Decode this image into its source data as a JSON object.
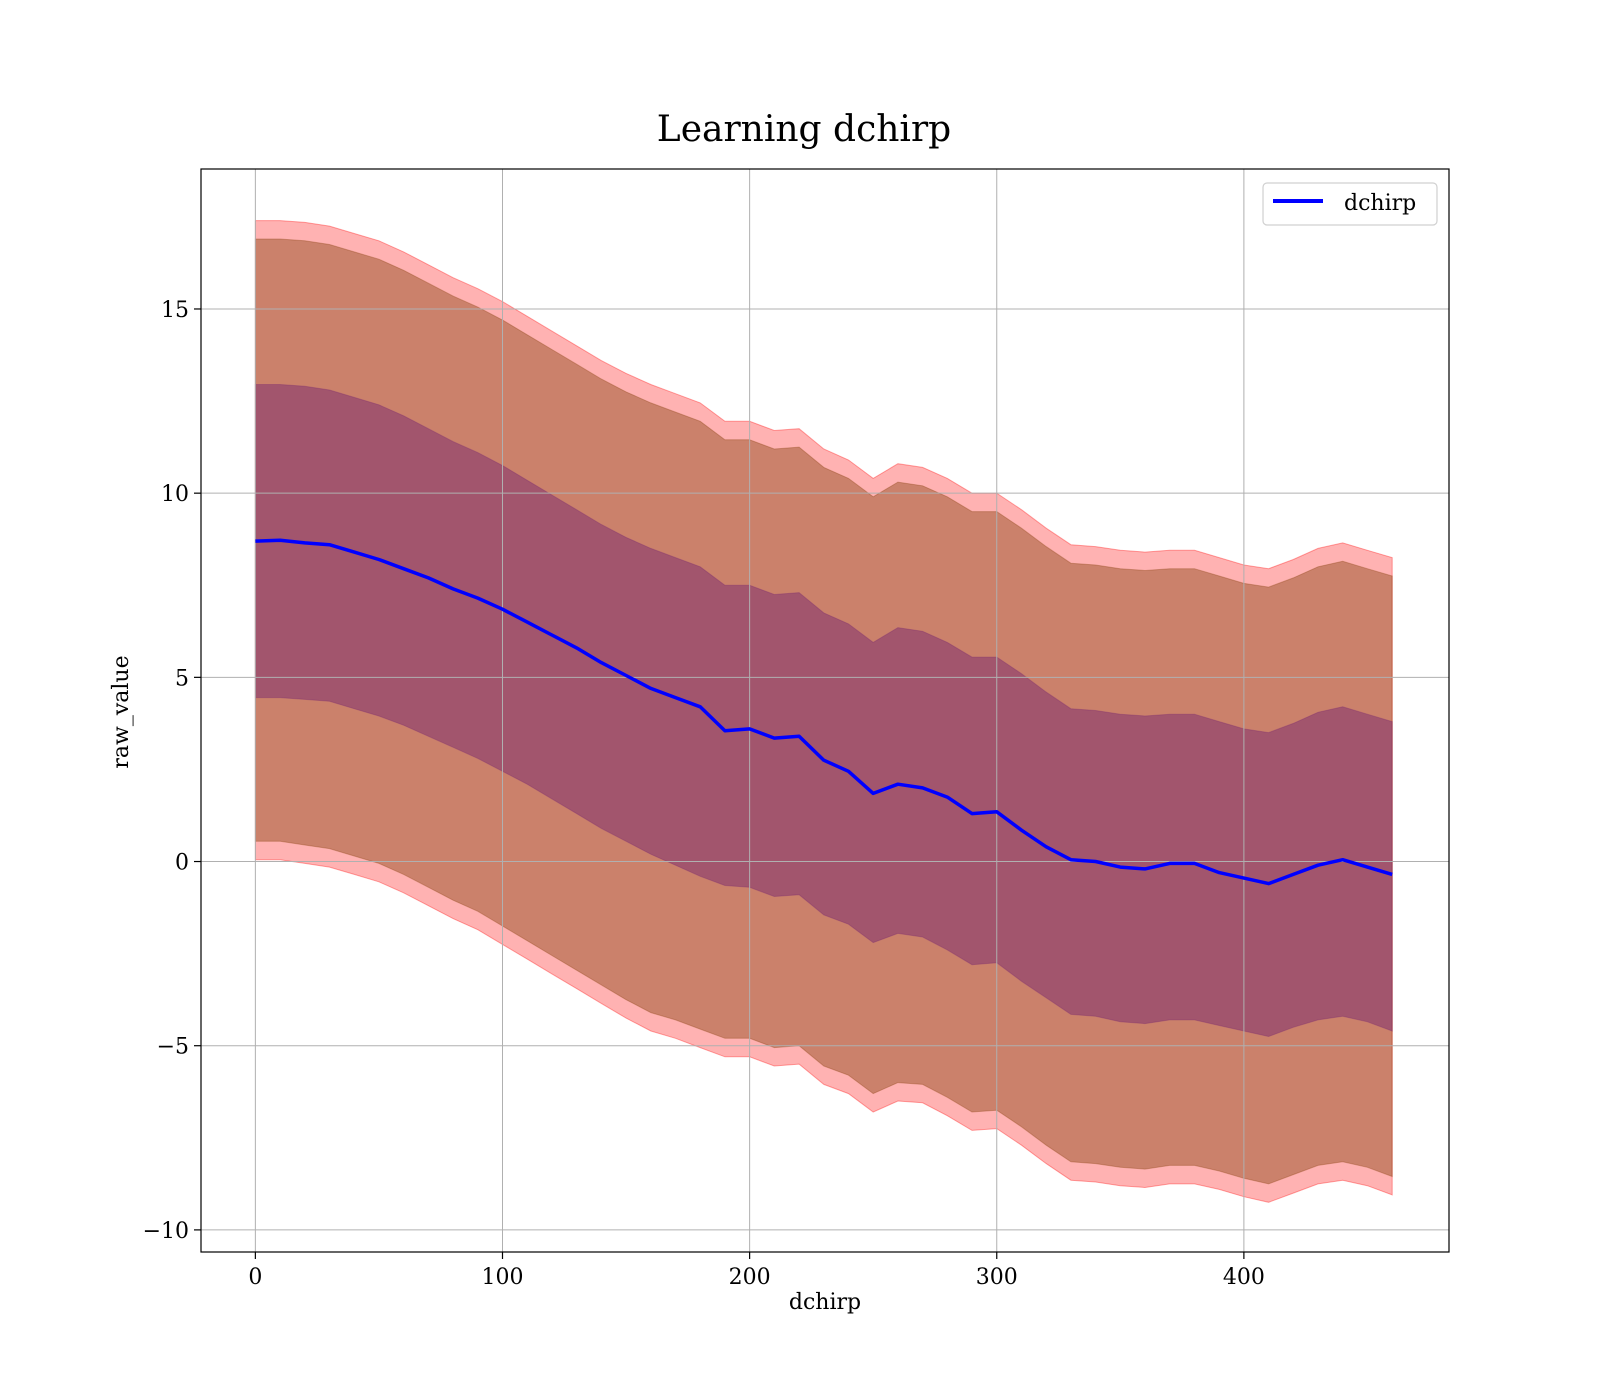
{
  "chart_data": {
    "type": "line",
    "title": "Learning dchirp",
    "xlabel": "dchirp",
    "ylabel": "raw_value",
    "xlim": [
      -22,
      483
    ],
    "ylim": [
      -10.6,
      18.8
    ],
    "xticks": [
      0,
      100,
      200,
      300,
      400
    ],
    "yticks": [
      -10,
      -5,
      0,
      5,
      10,
      15
    ],
    "xtick_labels": [
      "0",
      "100",
      "200",
      "300",
      "400"
    ],
    "ytick_labels": [
      "−10",
      "−5",
      "0",
      "5",
      "10",
      "15"
    ],
    "grid": true,
    "legend": {
      "placement": "top-right",
      "entries": [
        "dchirp"
      ]
    },
    "colors": {
      "line": "#0000ff",
      "outer_band": "#ff0000",
      "outer_band_alpha": 0.3,
      "inner_band": "#8b4513",
      "inner_band_alpha": 0.45,
      "core_band": "#7a2a70",
      "core_band_alpha": 0.5,
      "grid": "#b0b0b0"
    },
    "series": [
      {
        "name": "dchirp",
        "x": [
          0,
          10,
          20,
          30,
          40,
          50,
          60,
          70,
          80,
          90,
          100,
          110,
          120,
          130,
          140,
          150,
          160,
          170,
          180,
          190,
          200,
          210,
          220,
          230,
          240,
          250,
          260,
          270,
          280,
          290,
          300,
          310,
          320,
          330,
          340,
          350,
          360,
          370,
          380,
          390,
          400,
          410,
          420,
          430,
          440,
          450,
          460
        ],
        "y": [
          8.7,
          8.72,
          8.65,
          8.6,
          8.4,
          8.2,
          7.95,
          7.7,
          7.4,
          7.15,
          6.85,
          6.5,
          6.15,
          5.8,
          5.4,
          5.05,
          4.7,
          4.45,
          4.2,
          3.55,
          3.6,
          3.35,
          3.4,
          2.75,
          2.45,
          1.85,
          2.1,
          2.0,
          1.75,
          1.3,
          1.35,
          0.85,
          0.4,
          0.05,
          0.0,
          -0.15,
          -0.2,
          -0.05,
          -0.05,
          -0.3,
          -0.45,
          -0.6,
          -0.35,
          -0.1,
          0.05,
          -0.15,
          -0.35
        ]
      },
      {
        "name": "",
        "kind": "band",
        "level": "outer",
        "x": [
          0,
          10,
          20,
          30,
          40,
          50,
          60,
          70,
          80,
          90,
          100,
          110,
          120,
          130,
          140,
          150,
          160,
          170,
          180,
          190,
          200,
          210,
          220,
          230,
          240,
          250,
          260,
          270,
          280,
          290,
          300,
          310,
          320,
          330,
          340,
          350,
          360,
          370,
          380,
          390,
          400,
          410,
          420,
          430,
          440,
          450,
          460
        ],
        "upper": [
          17.4,
          17.4,
          17.35,
          17.25,
          17.05,
          16.85,
          16.55,
          16.2,
          15.85,
          15.55,
          15.2,
          14.8,
          14.4,
          14.0,
          13.6,
          13.25,
          12.95,
          12.7,
          12.45,
          11.95,
          11.95,
          11.7,
          11.75,
          11.2,
          10.9,
          10.4,
          10.8,
          10.7,
          10.4,
          10.0,
          10.0,
          9.55,
          9.05,
          8.6,
          8.55,
          8.45,
          8.4,
          8.45,
          8.45,
          8.25,
          8.05,
          7.95,
          8.2,
          8.5,
          8.65,
          8.45,
          8.25
        ],
        "lower": [
          0.05,
          0.05,
          -0.05,
          -0.15,
          -0.35,
          -0.55,
          -0.85,
          -1.2,
          -1.55,
          -1.85,
          -2.25,
          -2.65,
          -3.05,
          -3.45,
          -3.85,
          -4.25,
          -4.6,
          -4.8,
          -5.05,
          -5.3,
          -5.3,
          -5.55,
          -5.5,
          -6.05,
          -6.3,
          -6.8,
          -6.5,
          -6.55,
          -6.9,
          -7.3,
          -7.25,
          -7.7,
          -8.2,
          -8.65,
          -8.7,
          -8.8,
          -8.85,
          -8.75,
          -8.75,
          -8.9,
          -9.1,
          -9.25,
          -9.0,
          -8.75,
          -8.65,
          -8.8,
          -9.05
        ]
      },
      {
        "name": "",
        "kind": "band",
        "level": "inner",
        "x": [
          0,
          10,
          20,
          30,
          40,
          50,
          60,
          70,
          80,
          90,
          100,
          110,
          120,
          130,
          140,
          150,
          160,
          170,
          180,
          190,
          200,
          210,
          220,
          230,
          240,
          250,
          260,
          270,
          280,
          290,
          300,
          310,
          320,
          330,
          340,
          350,
          360,
          370,
          380,
          390,
          400,
          410,
          420,
          430,
          440,
          450,
          460
        ],
        "upper": [
          16.9,
          16.9,
          16.85,
          16.75,
          16.55,
          16.35,
          16.05,
          15.7,
          15.35,
          15.05,
          14.7,
          14.3,
          13.9,
          13.5,
          13.1,
          12.75,
          12.45,
          12.2,
          11.95,
          11.45,
          11.45,
          11.2,
          11.25,
          10.7,
          10.4,
          9.9,
          10.3,
          10.2,
          9.9,
          9.5,
          9.5,
          9.05,
          8.55,
          8.1,
          8.05,
          7.95,
          7.9,
          7.95,
          7.95,
          7.75,
          7.55,
          7.45,
          7.7,
          8.0,
          8.15,
          7.95,
          7.75
        ],
        "lower": [
          0.55,
          0.55,
          0.45,
          0.35,
          0.15,
          -0.05,
          -0.35,
          -0.7,
          -1.05,
          -1.35,
          -1.75,
          -2.15,
          -2.55,
          -2.95,
          -3.35,
          -3.75,
          -4.1,
          -4.3,
          -4.55,
          -4.8,
          -4.8,
          -5.05,
          -5.0,
          -5.55,
          -5.8,
          -6.3,
          -6.0,
          -6.05,
          -6.4,
          -6.8,
          -6.75,
          -7.2,
          -7.7,
          -8.15,
          -8.2,
          -8.3,
          -8.35,
          -8.25,
          -8.25,
          -8.4,
          -8.6,
          -8.75,
          -8.5,
          -8.25,
          -8.15,
          -8.3,
          -8.55
        ]
      },
      {
        "name": "",
        "kind": "band",
        "level": "core",
        "x": [
          0,
          10,
          20,
          30,
          40,
          50,
          60,
          70,
          80,
          90,
          100,
          110,
          120,
          130,
          140,
          150,
          160,
          170,
          180,
          190,
          200,
          210,
          220,
          230,
          240,
          250,
          260,
          270,
          280,
          290,
          300,
          310,
          320,
          330,
          340,
          350,
          360,
          370,
          380,
          390,
          400,
          410,
          420,
          430,
          440,
          450,
          460
        ],
        "upper": [
          12.95,
          12.95,
          12.9,
          12.8,
          12.6,
          12.4,
          12.1,
          11.75,
          11.4,
          11.1,
          10.75,
          10.35,
          9.95,
          9.55,
          9.15,
          8.8,
          8.5,
          8.25,
          8.0,
          7.5,
          7.5,
          7.25,
          7.3,
          6.75,
          6.45,
          5.95,
          6.35,
          6.25,
          5.95,
          5.55,
          5.55,
          5.1,
          4.6,
          4.15,
          4.1,
          4.0,
          3.95,
          4.0,
          4.0,
          3.8,
          3.6,
          3.5,
          3.75,
          4.05,
          4.2,
          4.0,
          3.8
        ],
        "lower": [
          4.45,
          4.45,
          4.4,
          4.35,
          4.15,
          3.95,
          3.7,
          3.4,
          3.1,
          2.8,
          2.45,
          2.1,
          1.7,
          1.3,
          0.9,
          0.55,
          0.2,
          -0.1,
          -0.4,
          -0.65,
          -0.7,
          -0.95,
          -0.9,
          -1.45,
          -1.7,
          -2.2,
          -1.95,
          -2.05,
          -2.4,
          -2.8,
          -2.75,
          -3.25,
          -3.7,
          -4.15,
          -4.2,
          -4.35,
          -4.4,
          -4.3,
          -4.3,
          -4.45,
          -4.6,
          -4.75,
          -4.5,
          -4.3,
          -4.2,
          -4.35,
          -4.6
        ]
      }
    ]
  }
}
